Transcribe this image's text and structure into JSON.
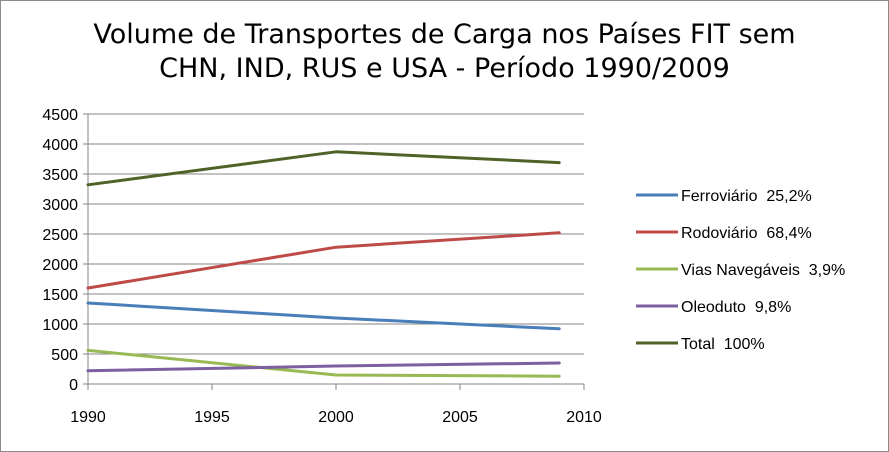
{
  "chart_data": {
    "type": "line",
    "title": [
      "Volume de Transportes de Carga nos Países FIT sem",
      "CHN, IND, RUS e USA - Período 1990/2009"
    ],
    "xlabel": "",
    "ylabel": "",
    "xlim": [
      1990,
      2010
    ],
    "ylim": [
      0,
      4500
    ],
    "x_ticks": [
      "1990",
      "1995",
      "2000",
      "2005",
      "2010"
    ],
    "y_ticks": [
      "0",
      "500",
      "1000",
      "1500",
      "2000",
      "2500",
      "3000",
      "3500",
      "4000",
      "4500"
    ],
    "grid": "horizontal",
    "legend_position": "right",
    "series": [
      {
        "name": "Ferroviário  25,2%",
        "color": "#4a7ebb",
        "x": [
          1990,
          2000,
          2009
        ],
        "y": [
          1350,
          1100,
          920
        ]
      },
      {
        "name": "Rodoviário  68,4%",
        "color": "#be4b48",
        "x": [
          1990,
          2000,
          2009
        ],
        "y": [
          1600,
          2280,
          2520
        ]
      },
      {
        "name": "Vias Navegáveis  3,9%",
        "color": "#98b954",
        "x": [
          1990,
          2000,
          2009
        ],
        "y": [
          560,
          150,
          130
        ]
      },
      {
        "name": "Oleoduto  9,8%",
        "color": "#7d60a0",
        "x": [
          1990,
          2000,
          2009
        ],
        "y": [
          220,
          300,
          350
        ]
      },
      {
        "name": "Total  100%",
        "color": "#4f6228",
        "x": [
          1990,
          2000,
          2009
        ],
        "y": [
          3320,
          3870,
          3690
        ]
      }
    ]
  }
}
